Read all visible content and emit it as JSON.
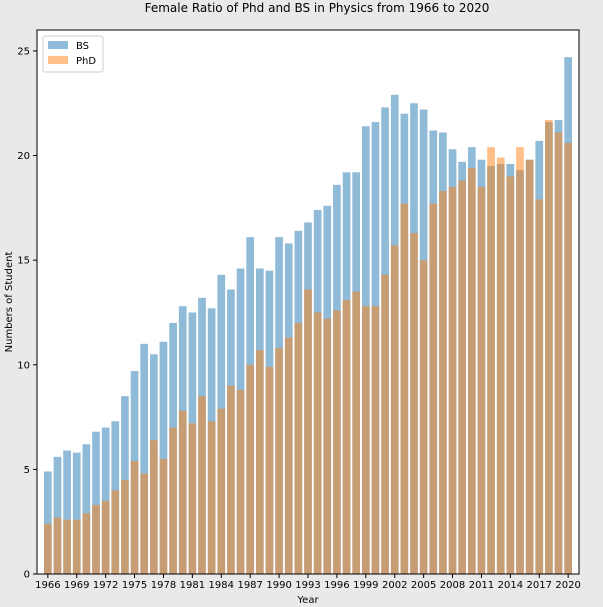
{
  "chart_data": {
    "type": "bar",
    "title": "Female Ratio of Phd and BS in Physics from 1966 to 2020",
    "xlabel": "Year",
    "ylabel": "Numbers of Student",
    "ylim": [
      0,
      26
    ],
    "yticks": [
      0,
      5,
      10,
      15,
      20,
      25
    ],
    "xticks": [
      1966,
      1969,
      1972,
      1975,
      1978,
      1981,
      1984,
      1987,
      1990,
      1993,
      1996,
      1999,
      2002,
      2005,
      2008,
      2011,
      2014,
      2017,
      2020
    ],
    "grid": false,
    "legend_position": "top-left",
    "colors": {
      "BS": "#1f77b4",
      "PhD": "#ff7f0e"
    },
    "x": [
      1966,
      1967,
      1968,
      1969,
      1970,
      1971,
      1972,
      1973,
      1974,
      1975,
      1976,
      1977,
      1978,
      1979,
      1980,
      1981,
      1982,
      1983,
      1984,
      1985,
      1986,
      1987,
      1988,
      1989,
      1990,
      1991,
      1992,
      1993,
      1994,
      1995,
      1996,
      1997,
      1998,
      1999,
      2000,
      2001,
      2002,
      2003,
      2004,
      2005,
      2006,
      2007,
      2008,
      2009,
      2010,
      2011,
      2012,
      2013,
      2014,
      2015,
      2016,
      2017,
      2018,
      2019,
      2020
    ],
    "series": [
      {
        "name": "BS",
        "values": [
          4.9,
          5.6,
          5.9,
          5.8,
          6.2,
          6.8,
          7.0,
          7.3,
          8.5,
          9.7,
          11.0,
          10.5,
          11.1,
          12.0,
          12.8,
          12.5,
          13.2,
          12.7,
          14.3,
          13.6,
          14.6,
          16.1,
          14.6,
          14.5,
          16.1,
          15.8,
          16.4,
          16.8,
          17.4,
          17.6,
          18.6,
          19.2,
          19.2,
          21.4,
          21.6,
          22.3,
          22.9,
          22.0,
          22.5,
          22.2,
          21.2,
          21.1,
          20.3,
          19.7,
          20.4,
          19.8,
          19.5,
          19.6,
          19.6,
          19.3,
          19.8,
          20.7,
          21.6,
          21.7,
          24.7
        ]
      },
      {
        "name": "PhD",
        "values": [
          2.4,
          2.7,
          2.6,
          2.6,
          2.9,
          3.3,
          3.5,
          4.0,
          4.5,
          5.4,
          4.8,
          6.4,
          5.5,
          7.0,
          7.8,
          7.2,
          8.5,
          7.3,
          7.9,
          9.0,
          8.8,
          10.0,
          10.7,
          9.9,
          10.8,
          11.3,
          12.0,
          13.6,
          12.5,
          12.2,
          12.6,
          13.1,
          13.5,
          12.8,
          12.8,
          14.3,
          15.7,
          17.7,
          16.3,
          15.0,
          17.7,
          18.3,
          18.5,
          18.8,
          19.4,
          18.5,
          20.4,
          19.9,
          19.0,
          20.4,
          19.8,
          17.9,
          21.7,
          21.1,
          20.6
        ]
      }
    ]
  }
}
